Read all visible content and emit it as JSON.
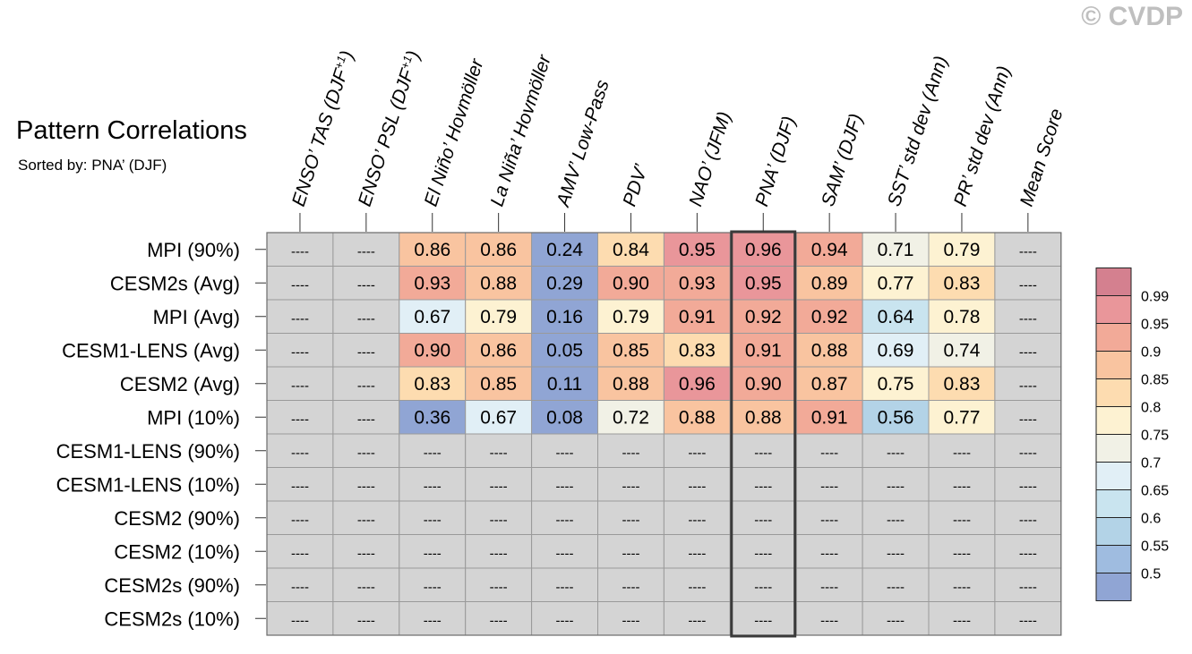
{
  "watermark": "© CVDP",
  "chart_data": {
    "type": "table",
    "title": "Pattern Correlations",
    "subtitle": "Sorted by: PNA’ (DJF)",
    "columns": [
      "ENSO’ TAS (DJF+1)",
      "ENSO’ PSL (DJF+1)",
      "El Niño’ Hovmöller",
      "La Niña’ Hovmöller",
      "AMV’ Low-Pass",
      "PDV’",
      "NAO’ (JFM)",
      "PNA’ (DJF)",
      "SAM’ (DJF)",
      "SST’ std dev (Ann)",
      "PR’ std dev (Ann)",
      "Mean Score"
    ],
    "highlight_column": "PNA’ (DJF)",
    "missing_label": "----",
    "rows": [
      {
        "label": "MPI (90%)",
        "values": [
          null,
          null,
          0.86,
          0.86,
          0.24,
          0.84,
          0.95,
          0.96,
          0.94,
          0.71,
          0.79,
          null
        ]
      },
      {
        "label": "CESM2s (Avg)",
        "values": [
          null,
          null,
          0.93,
          0.88,
          0.29,
          0.9,
          0.93,
          0.95,
          0.89,
          0.77,
          0.83,
          null
        ]
      },
      {
        "label": "MPI (Avg)",
        "values": [
          null,
          null,
          0.67,
          0.79,
          0.16,
          0.79,
          0.91,
          0.92,
          0.92,
          0.64,
          0.78,
          null
        ]
      },
      {
        "label": "CESM1-LENS (Avg)",
        "values": [
          null,
          null,
          0.9,
          0.86,
          0.05,
          0.85,
          0.83,
          0.91,
          0.88,
          0.69,
          0.74,
          null
        ]
      },
      {
        "label": "CESM2 (Avg)",
        "values": [
          null,
          null,
          0.83,
          0.85,
          0.11,
          0.88,
          0.96,
          0.9,
          0.87,
          0.75,
          0.83,
          null
        ]
      },
      {
        "label": "MPI (10%)",
        "values": [
          null,
          null,
          0.36,
          0.67,
          0.08,
          0.72,
          0.88,
          0.88,
          0.91,
          0.56,
          0.77,
          null
        ]
      },
      {
        "label": "CESM1-LENS (90%)",
        "values": [
          null,
          null,
          null,
          null,
          null,
          null,
          null,
          null,
          null,
          null,
          null,
          null
        ]
      },
      {
        "label": "CESM1-LENS (10%)",
        "values": [
          null,
          null,
          null,
          null,
          null,
          null,
          null,
          null,
          null,
          null,
          null,
          null
        ]
      },
      {
        "label": "CESM2 (90%)",
        "values": [
          null,
          null,
          null,
          null,
          null,
          null,
          null,
          null,
          null,
          null,
          null,
          null
        ]
      },
      {
        "label": "CESM2 (10%)",
        "values": [
          null,
          null,
          null,
          null,
          null,
          null,
          null,
          null,
          null,
          null,
          null,
          null
        ]
      },
      {
        "label": "CESM2s (90%)",
        "values": [
          null,
          null,
          null,
          null,
          null,
          null,
          null,
          null,
          null,
          null,
          null,
          null
        ]
      },
      {
        "label": "CESM2s (10%)",
        "values": [
          null,
          null,
          null,
          null,
          null,
          null,
          null,
          null,
          null,
          null,
          null,
          null
        ]
      }
    ],
    "colorbar": {
      "labels": [
        "0.99",
        "0.95",
        "0.9",
        "0.85",
        "0.8",
        "0.75",
        "0.7",
        "0.65",
        "0.6",
        "0.55",
        "0.5"
      ],
      "thresholds": [
        0.99,
        0.95,
        0.9,
        0.85,
        0.8,
        0.75,
        0.7,
        0.65,
        0.6,
        0.55,
        0.5
      ],
      "colors": [
        "#d4808f",
        "#e9969a",
        "#f2aa98",
        "#f9c4a0",
        "#fddcb0",
        "#fdf2d2",
        "#f1f1e6",
        "#e1eff6",
        "#c9e4ef",
        "#b3d3e7",
        "#9fbce0",
        "#90a5d4"
      ]
    },
    "missing_color": "#d4d4d4"
  }
}
